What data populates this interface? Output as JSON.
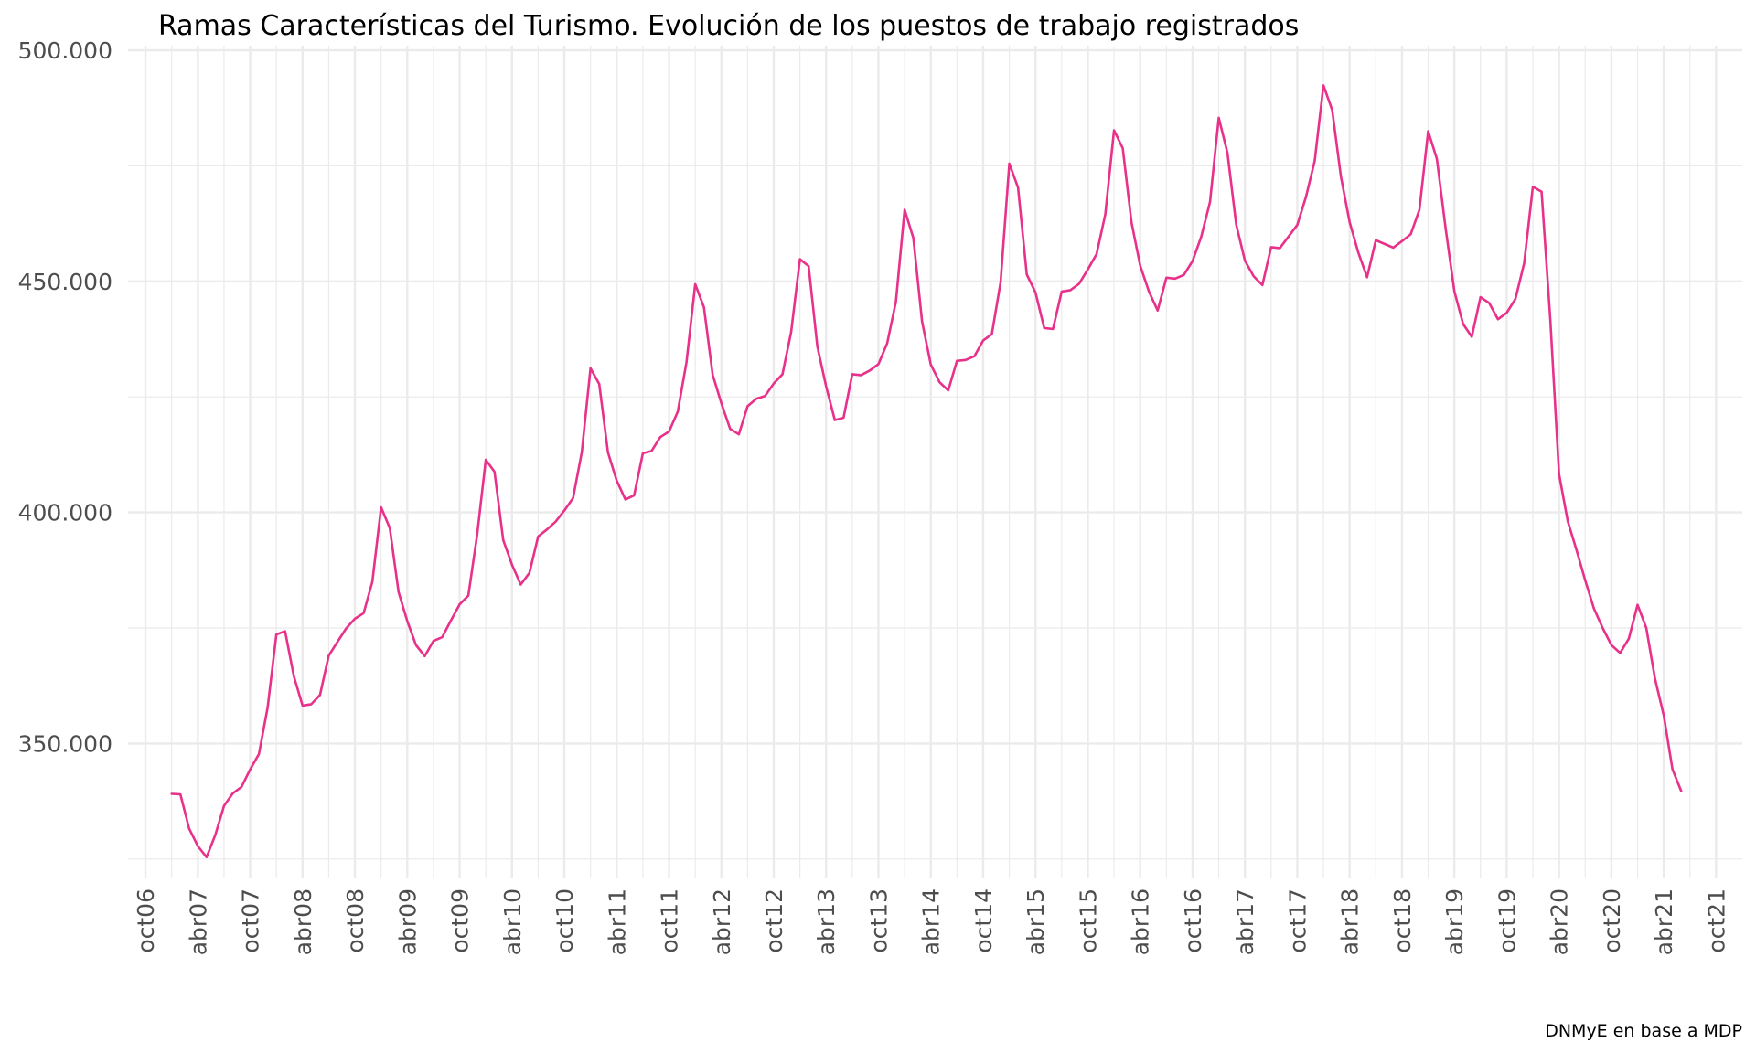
{
  "chart_data": {
    "type": "line",
    "title": "Ramas Características del Turismo. Evolución de los puestos de trabajo registrados",
    "caption": "DNMyE en base a MDP",
    "xlabel": "",
    "ylabel": "",
    "x_start": "2007-01",
    "x_frequency": "monthly",
    "xlim": [
      "2006-08",
      "2022-01"
    ],
    "x_ticks": [
      "2006-10",
      "2007-04",
      "2007-10",
      "2008-04",
      "2008-10",
      "2009-04",
      "2009-10",
      "2010-04",
      "2010-10",
      "2011-04",
      "2011-10",
      "2012-04",
      "2012-10",
      "2013-04",
      "2013-10",
      "2014-04",
      "2014-10",
      "2015-04",
      "2015-10",
      "2016-04",
      "2016-10",
      "2017-04",
      "2017-10",
      "2018-04",
      "2018-10",
      "2019-04",
      "2019-10",
      "2020-04",
      "2020-10",
      "2021-04",
      "2021-10"
    ],
    "x_tick_labels": [
      "oct06",
      "abr07",
      "oct07",
      "abr08",
      "oct08",
      "abr09",
      "oct09",
      "abr10",
      "oct10",
      "abr11",
      "oct11",
      "abr12",
      "oct12",
      "abr13",
      "oct13",
      "abr14",
      "oct14",
      "abr15",
      "oct15",
      "abr16",
      "oct16",
      "abr17",
      "oct17",
      "abr18",
      "oct18",
      "abr19",
      "oct19",
      "abr20",
      "oct20",
      "abr21",
      "oct21"
    ],
    "ylim": [
      321000,
      501000
    ],
    "y_ticks": [
      350000,
      400000,
      450000,
      500000
    ],
    "y_tick_labels": [
      "350.000",
      "400.000",
      "450.000",
      "500.000"
    ],
    "grid": true,
    "legend": "none",
    "color": "#E8318A",
    "series": [
      {
        "values": [
          339100,
          339000,
          331600,
          327800,
          325400,
          330200,
          336500,
          339200,
          340600,
          344400,
          347700,
          357800,
          373600,
          374300,
          364600,
          358200,
          358500,
          360500,
          369000,
          372000,
          374900,
          377000,
          378200,
          385000,
          401100,
          396600,
          382800,
          376500,
          371300,
          368900,
          372200,
          373000,
          376600,
          380100,
          382000,
          395000,
          411400,
          408800,
          394000,
          388700,
          384400,
          386900,
          394800,
          396300,
          398000,
          400400,
          403100,
          413000,
          431200,
          427800,
          413000,
          406900,
          402800,
          403700,
          412800,
          413300,
          416300,
          417500,
          421800,
          432500,
          449400,
          444400,
          429800,
          423600,
          418100,
          416900,
          423000,
          424600,
          425200,
          427900,
          429900,
          439100,
          454800,
          453300,
          435900,
          427300,
          420000,
          420500,
          429900,
          429700,
          430700,
          432100,
          436600,
          445600,
          465500,
          459400,
          441300,
          432000,
          428200,
          426400,
          432800,
          433000,
          433800,
          437200,
          438600,
          449800,
          475500,
          470300,
          451500,
          447600,
          439900,
          439700,
          447800,
          448100,
          449500,
          452600,
          455900,
          464500,
          482700,
          478800,
          462800,
          453400,
          447800,
          443700,
          450800,
          450600,
          451400,
          454400,
          459700,
          467200,
          485400,
          477800,
          462300,
          454500,
          451100,
          449200,
          457400,
          457200,
          459700,
          462200,
          468300,
          476100,
          492400,
          487100,
          472700,
          462800,
          456200,
          450900,
          458900,
          458100,
          457300,
          458700,
          460200,
          465500,
          482500,
          476500,
          461500,
          447900,
          440800,
          438000,
          446600,
          445300,
          441800,
          443200,
          446200,
          453900,
          470500,
          469400,
          441700,
          408300,
          398100,
          391900,
          385300,
          379200,
          375000,
          371300,
          369600,
          372700,
          380000,
          375000,
          364000,
          356100,
          344400,
          339700
        ]
      }
    ]
  }
}
